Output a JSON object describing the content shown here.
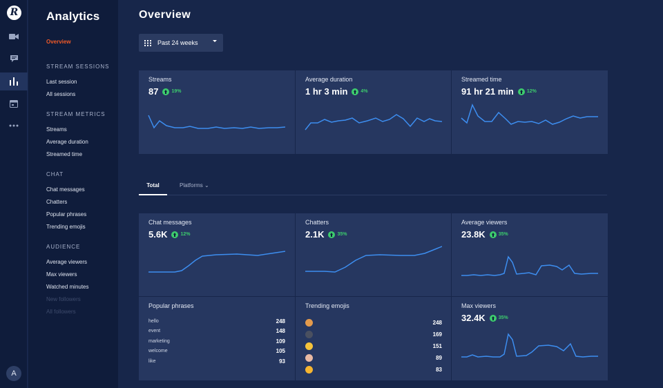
{
  "rail": {
    "logo": "R",
    "avatar": "A",
    "icons": [
      "camera-icon",
      "chat-icon",
      "bar-chart-icon",
      "calendar-icon",
      "more-icon"
    ]
  },
  "nav": {
    "title": "Analytics",
    "overview": "Overview",
    "stream_sessions": {
      "heading": "STREAM SESSIONS",
      "items": [
        "Last session",
        "All sessions"
      ]
    },
    "stream_metrics": {
      "heading": "STREAM METRICS",
      "items": [
        "Streams",
        "Average duration",
        "Streamed time"
      ]
    },
    "chat": {
      "heading": "CHAT",
      "items": [
        "Chat messages",
        "Chatters",
        "Popular phrases",
        "Trending emojis"
      ]
    },
    "audience": {
      "heading": "AUDIENCE",
      "items": [
        "Average viewers",
        "Max viewers",
        "Watched minutes",
        "New followers",
        "All followers"
      ]
    }
  },
  "main": {
    "title": "Overview",
    "range": "Past 24 weeks",
    "tabs": {
      "total": "Total",
      "platforms": "Platforms ⌄"
    }
  },
  "cards": {
    "streams": {
      "label": "Streams",
      "value": "87",
      "change": "19%"
    },
    "avg_duration": {
      "label": "Average duration",
      "value": "1 hr 3 min",
      "change": "4%"
    },
    "streamed_time": {
      "label": "Streamed time",
      "value": "91 hr 21 min",
      "change": "12%"
    },
    "chat_messages": {
      "label": "Chat messages",
      "value": "5.6K",
      "change": "12%"
    },
    "chatters": {
      "label": "Chatters",
      "value": "2.1K",
      "change": "35%"
    },
    "avg_viewers": {
      "label": "Average viewers",
      "value": "23.8K",
      "change": "35%"
    },
    "max_viewers": {
      "label": "Max viewers",
      "value": "32.4K",
      "change": "35%"
    },
    "popular_phrases": {
      "label": "Popular phrases",
      "rows": [
        {
          "k": "hello",
          "v": "248"
        },
        {
          "k": "event",
          "v": "148"
        },
        {
          "k": "marketing",
          "v": "109"
        },
        {
          "k": "welcome",
          "v": "105"
        },
        {
          "k": "like",
          "v": "93"
        }
      ]
    },
    "trending_emojis": {
      "label": "Trending emojis",
      "rows": [
        {
          "emoji": "monkey-icon",
          "color": "#e39a4c",
          "v": "248"
        },
        {
          "emoji": "bomb-icon",
          "color": "#4a5060",
          "v": "169"
        },
        {
          "emoji": "squinting-face-icon",
          "color": "#f5c33b",
          "v": "151"
        },
        {
          "emoji": "person-icon",
          "color": "#e8b9a3",
          "v": "89"
        },
        {
          "emoji": "hatching-chick-icon",
          "color": "#f6b530",
          "v": "83"
        }
      ]
    }
  },
  "colors": {
    "accent": "#f05a28",
    "positive": "#3dcc6d",
    "line": "#3d8ef0",
    "card": "#263760"
  }
}
